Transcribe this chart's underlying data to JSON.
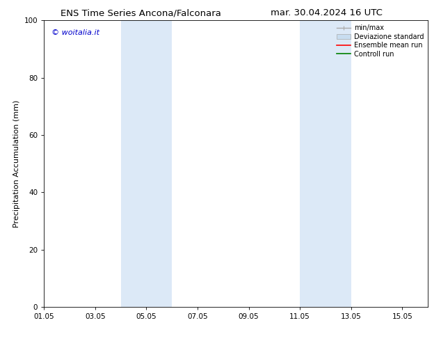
{
  "title_left": "ENS Time Series Ancona/Falconara",
  "title_right": "mar. 30.04.2024 16 UTC",
  "ylabel": "Precipitation Accumulation (mm)",
  "ylim": [
    0,
    100
  ],
  "yticks": [
    0,
    20,
    40,
    60,
    80,
    100
  ],
  "xlim": [
    1,
    16
  ],
  "xtick_labels": [
    "01.05",
    "03.05",
    "05.05",
    "07.05",
    "09.05",
    "11.05",
    "13.05",
    "15.05"
  ],
  "xtick_positions_days": [
    1,
    3,
    5,
    7,
    9,
    11,
    13,
    15
  ],
  "shaded_bands": [
    {
      "x_start_day": 4.0,
      "x_end_day": 6.0
    },
    {
      "x_start_day": 11.0,
      "x_end_day": 13.0
    }
  ],
  "shaded_color": "#dce9f7",
  "background_color": "#ffffff",
  "watermark_text": "© woitalia.it",
  "watermark_color": "#0000cc",
  "title_fontsize": 9.5,
  "ylabel_fontsize": 8,
  "tick_fontsize": 7.5,
  "watermark_fontsize": 8,
  "legend_fontsize": 7,
  "minmax_color": "#aaaaaa",
  "devstd_color": "#c8ddf0",
  "ensemble_color": "#ff0000",
  "control_color": "#008000"
}
